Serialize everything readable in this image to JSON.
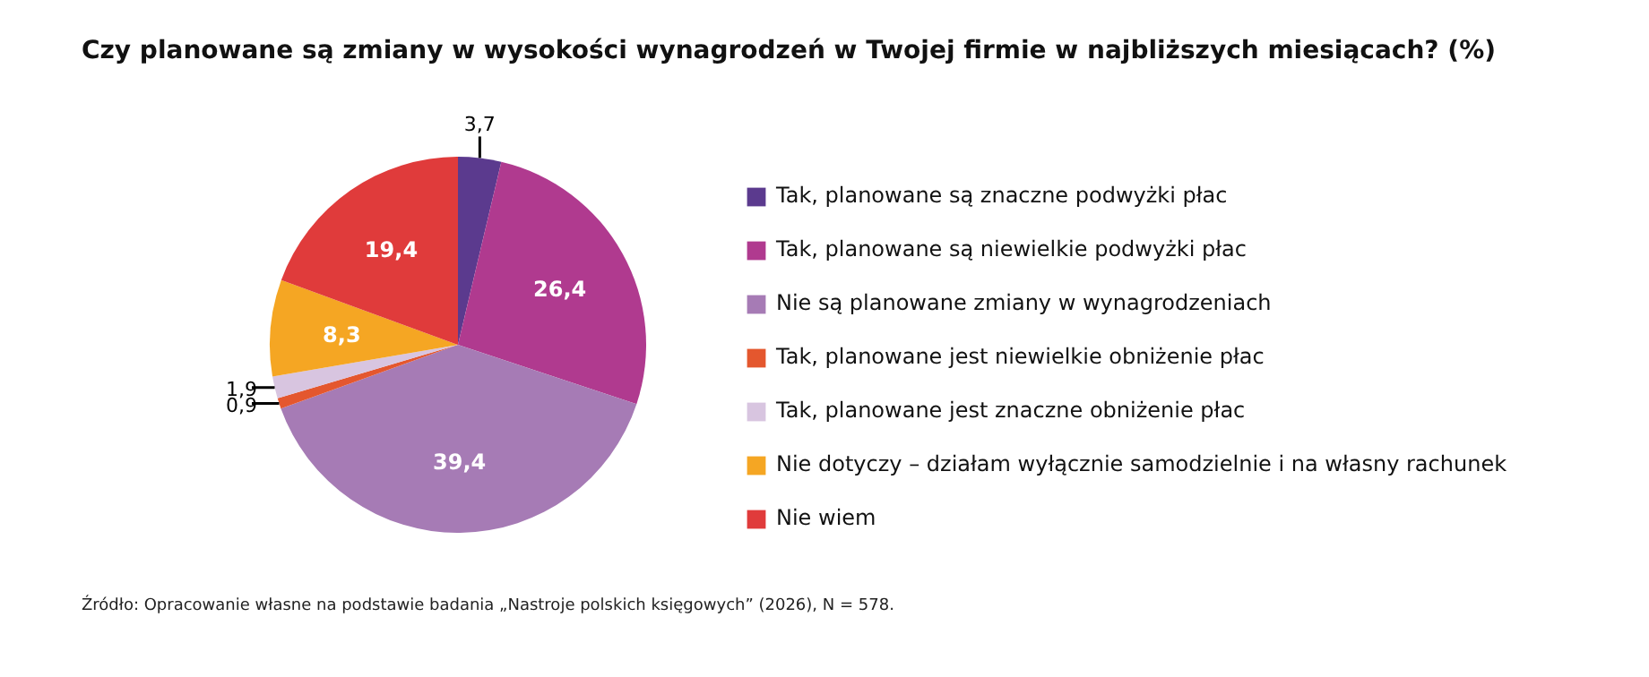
{
  "chart_data": {
    "type": "pie",
    "title": "Czy planowane są zmiany w wysokości wynagrodzeń w Twojej firmie w najbliższych miesiącach? (%)",
    "categories": [
      "Tak, planowane są znaczne podwyżki płac",
      "Tak, planowane są niewielkie podwyżki płac",
      "Nie są planowane zmiany w wynagrodzeniach",
      "Tak, planowane jest niewielkie obniżenie płac",
      "Tak, planowane jest znaczne obniżenie płac",
      "Nie dotyczy – działam wyłącznie samodzielnie i na własny rachunek",
      "Nie wiem"
    ],
    "values": [
      3.7,
      26.4,
      39.4,
      0.9,
      1.9,
      8.3,
      19.4
    ],
    "colors": [
      "#5b3a8e",
      "#b03a8f",
      "#a67bb5",
      "#e4572e",
      "#d8c5e0",
      "#f5a623",
      "#e03b3b"
    ],
    "value_labels": [
      "3,7",
      "26,4",
      "39,4",
      "0,9",
      "1,9",
      "8,3",
      "19,4"
    ],
    "legend": "right",
    "annotations": [
      "Źródło: Opracowanie własne na podstawie badania „Nastroje polskich księgowych” (2026), N = 578."
    ]
  }
}
